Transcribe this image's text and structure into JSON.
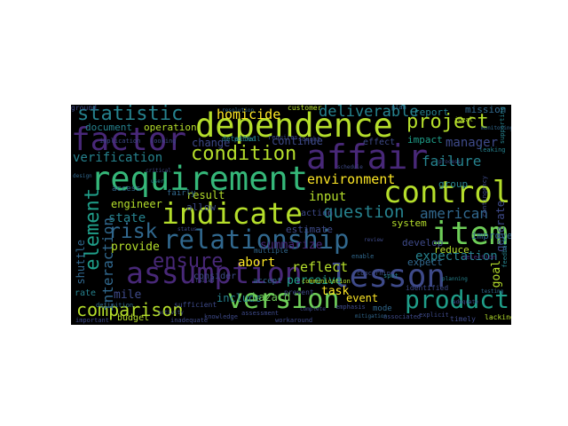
{
  "palette": {
    "purple": "#482878",
    "indigo": "#3e4a89",
    "blue": "#31688e",
    "teal": "#26828e",
    "seagreen": "#1f9e89",
    "green": "#35b779",
    "lime": "#6ece58",
    "yellow": "#b5de2b",
    "gold": "#fde725"
  },
  "words": [
    {
      "text": "dependence",
      "color": "#b5de2b"
    },
    {
      "text": "factor",
      "color": "#482878"
    },
    {
      "text": "affair",
      "color": "#482878"
    },
    {
      "text": "requirement",
      "color": "#35b779"
    },
    {
      "text": "control",
      "color": "#b5de2b"
    },
    {
      "text": "indicate",
      "color": "#b5de2b"
    },
    {
      "text": "relationship",
      "color": "#31688e"
    },
    {
      "text": "item",
      "color": "#6ece58"
    },
    {
      "text": "assumption",
      "color": "#482878"
    },
    {
      "text": "lesson",
      "color": "#3e4a89"
    },
    {
      "text": "version",
      "color": "#6ece58"
    },
    {
      "text": "product",
      "color": "#1f9e89"
    },
    {
      "text": "ensure",
      "color": "#482878"
    },
    {
      "text": "statistic",
      "color": "#26828e"
    },
    {
      "text": "project",
      "color": "#b5de2b"
    },
    {
      "text": "condition",
      "color": "#b5de2b"
    },
    {
      "text": "comparison",
      "color": "#b5de2b"
    },
    {
      "text": "question",
      "color": "#26828e"
    },
    {
      "text": "risk",
      "color": "#31688e"
    },
    {
      "text": "element",
      "color": "#1f9e89"
    },
    {
      "text": "verification",
      "color": "#26828e"
    },
    {
      "text": "deliverable",
      "color": "#26828e"
    },
    {
      "text": "homicide",
      "color": "#fde725"
    },
    {
      "text": "environment",
      "color": "#fde725"
    },
    {
      "text": "failure",
      "color": "#26828e"
    },
    {
      "text": "expectation",
      "color": "#26828e"
    },
    {
      "text": "american",
      "color": "#31688e"
    },
    {
      "text": "summarize",
      "color": "#482878"
    },
    {
      "text": "reflect",
      "color": "#b5de2b"
    },
    {
      "text": "interaction",
      "color": "#31688e"
    },
    {
      "text": "manager",
      "color": "#3e4a89"
    },
    {
      "text": "input",
      "color": "#b5de2b"
    },
    {
      "text": "state",
      "color": "#26828e"
    },
    {
      "text": "perceive",
      "color": "#1f9e89"
    },
    {
      "text": "change",
      "color": "#3e4a89"
    },
    {
      "text": "mission",
      "color": "#31688e"
    },
    {
      "text": "report",
      "color": "#26828e"
    },
    {
      "text": "document",
      "color": "#26828e"
    },
    {
      "text": "operation",
      "color": "#b5de2b"
    },
    {
      "text": "continue",
      "color": "#3e4a89"
    },
    {
      "text": "impact",
      "color": "#1f9e89"
    },
    {
      "text": "group",
      "color": "#26828e"
    },
    {
      "text": "system",
      "color": "#b5de2b"
    },
    {
      "text": "generate",
      "color": "#3e4a89"
    },
    {
      "text": "provide",
      "color": "#b5de2b"
    },
    {
      "text": "estimate",
      "color": "#3e4a89"
    },
    {
      "text": "result",
      "color": "#b5de2b"
    },
    {
      "text": "engineer",
      "color": "#b5de2b"
    },
    {
      "text": "shuttle",
      "color": "#31688e"
    },
    {
      "text": "improve",
      "color": "#31688e"
    },
    {
      "text": "reduce",
      "color": "#b5de2b"
    },
    {
      "text": "abort",
      "color": "#fde725"
    },
    {
      "text": "task",
      "color": "#fde725"
    },
    {
      "text": "event",
      "color": "#fde725"
    },
    {
      "text": "include",
      "color": "#26828e"
    },
    {
      "text": "hazard",
      "color": "#6ece58"
    },
    {
      "text": "mile",
      "color": "#3e4a89"
    },
    {
      "text": "goal",
      "color": "#b5de2b"
    },
    {
      "text": "allow",
      "color": "#3e4a89"
    },
    {
      "text": "action",
      "color": "#3e4a89"
    },
    {
      "text": "develop",
      "color": "#3e4a89"
    },
    {
      "text": "consider",
      "color": "#3e4a89"
    },
    {
      "text": "rate",
      "color": "#26828e"
    },
    {
      "text": "expect",
      "color": "#31688e"
    },
    {
      "text": "budget",
      "color": "#b5de2b"
    },
    {
      "text": "mode",
      "color": "#31688e"
    },
    {
      "text": "accept",
      "color": "#31688e"
    },
    {
      "text": "prevent",
      "color": "#3e4a89"
    },
    {
      "text": "timely",
      "color": "#3e4a89"
    },
    {
      "text": "lacking",
      "color": "#b5de2b"
    },
    {
      "text": "effect",
      "color": "#3e4a89"
    },
    {
      "text": "access",
      "color": "#31688e"
    },
    {
      "text": "fairly",
      "color": "#31688e"
    },
    {
      "text": "detailed",
      "color": "#26828e"
    },
    {
      "text": "customer",
      "color": "#b5de2b"
    },
    {
      "text": "multiple",
      "color": "#31688e"
    },
    {
      "text": "identified",
      "color": "#3e4a89"
    },
    {
      "text": "sufficient",
      "color": "#3e4a89"
    },
    {
      "text": "communication",
      "color": "#b5de2b"
    },
    {
      "text": "concerning",
      "color": "#3e4a89"
    },
    {
      "text": "important",
      "color": "#3e4a89"
    },
    {
      "text": "supporting",
      "color": "#26828e"
    },
    {
      "text": "implication",
      "color": "#3e4a89"
    },
    {
      "text": "looking",
      "color": "#3e4a89"
    },
    {
      "text": "pitfall",
      "color": "#26828e"
    },
    {
      "text": "requires",
      "color": "#3e4a89"
    },
    {
      "text": "sought",
      "color": "#3e4a89"
    },
    {
      "text": "selection",
      "color": "#482878"
    },
    {
      "text": "plan",
      "color": "#31688e"
    },
    {
      "text": "leaking",
      "color": "#26828e"
    },
    {
      "text": "contingency",
      "color": "#3e4a89"
    },
    {
      "text": "feedback",
      "color": "#26828e"
    },
    {
      "text": "associated",
      "color": "#3e4a89"
    },
    {
      "text": "explicit",
      "color": "#3e4a89"
    },
    {
      "text": "emphasis",
      "color": "#3e4a89"
    },
    {
      "text": "definition",
      "color": "#31688e"
    },
    {
      "text": "knowledge",
      "color": "#3e4a89"
    },
    {
      "text": "inadequate",
      "color": "#3e4a89"
    },
    {
      "text": "workaround",
      "color": "#3e4a89"
    },
    {
      "text": "enable",
      "color": "#31688e"
    },
    {
      "text": "spot",
      "color": "#26828e"
    },
    {
      "text": "ideal",
      "color": "#b5de2b"
    },
    {
      "text": "assessment",
      "color": "#3e4a89"
    },
    {
      "text": "resolution",
      "color": "#31688e"
    },
    {
      "text": "complete",
      "color": "#3e4a89"
    },
    {
      "text": "activity",
      "color": "#3e4a89"
    },
    {
      "text": "monitoring",
      "color": "#31688e"
    },
    {
      "text": "adequate",
      "color": "#3e4a89"
    },
    {
      "text": "mitigation",
      "color": "#31688e"
    },
    {
      "text": "failed",
      "color": "#3e4a89"
    },
    {
      "text": "planning",
      "color": "#26828e"
    },
    {
      "text": "critical",
      "color": "#3e4a89"
    },
    {
      "text": "review",
      "color": "#3e4a89"
    },
    {
      "text": "design",
      "color": "#31688e"
    },
    {
      "text": "status",
      "color": "#3e4a89"
    },
    {
      "text": "user",
      "color": "#26828e"
    },
    {
      "text": "process",
      "color": "#3e4a89"
    },
    {
      "text": "testing",
      "color": "#31688e"
    },
    {
      "text": "schedule",
      "color": "#3e4a89"
    },
    {
      "text": "ground",
      "color": "#3e4a89"
    }
  ]
}
